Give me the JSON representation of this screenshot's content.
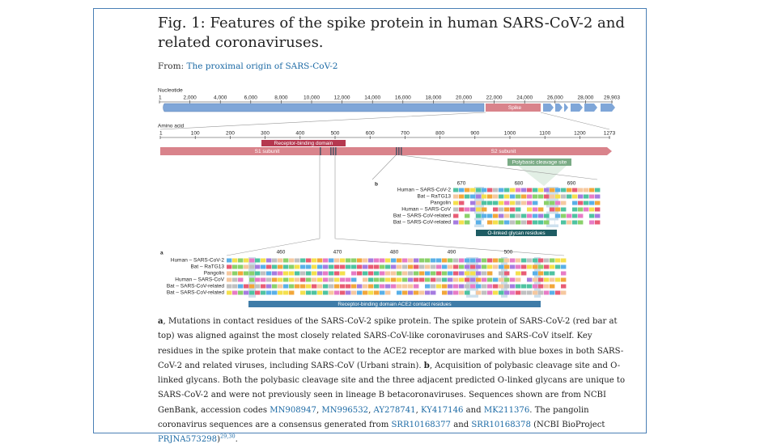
{
  "header": {
    "title": "Fig. 1: Features of the spike protein in human SARS-CoV-2 and related coronaviruses.",
    "from_label": "From:",
    "from_link": "The proximal origin of SARS-CoV-2"
  },
  "figure": {
    "nucleotide": {
      "label": "Nucleotide",
      "ticks": [
        "1",
        "2,000",
        "4,000",
        "6,000",
        "8,000",
        "10,000",
        "12,000",
        "14,000",
        "16,000",
        "18,000",
        "20,000",
        "22,000",
        "24,000",
        "26,000",
        "28,000",
        "29,903"
      ],
      "spike_label": "Spike"
    },
    "amino_acid": {
      "label": "Amino acid",
      "ticks": [
        "1",
        "100",
        "200",
        "300",
        "400",
        "500",
        "600",
        "700",
        "800",
        "900",
        "1000",
        "1100",
        "1200",
        "1273"
      ],
      "rbd_label": "Receptor-binding domain",
      "s1_label": "S1 subunit",
      "s2_label": "S2 subunit",
      "polybasic_label": "Polybasic cleavage site"
    },
    "panel_b": {
      "letter": "b",
      "positions": [
        "670",
        "680",
        "690"
      ],
      "rows": [
        "Human – SARS-CoV-2",
        "Bat – RaTG13",
        "Pangolin",
        "Human – SARS-CoV",
        "Bat – SARS-CoV-related",
        "Bat – SARS-CoV-related"
      ],
      "footer": "O-linked glycan residues"
    },
    "panel_a": {
      "letter": "a",
      "positions": [
        "460",
        "470",
        "480",
        "490",
        "500"
      ],
      "rows": [
        "Human – SARS-CoV-2",
        "Bat – RaTG13",
        "Pangolin",
        "Human – SARS-CoV",
        "Bat – SARS-CoV-related",
        "Bat – SARS-CoV-related"
      ],
      "footer": "Receptor-binding domain ACE2 contact residues"
    }
  },
  "caption": {
    "parts": [
      "a",
      ", Mutations in contact residues of the SARS-CoV-2 spike protein. The spike protein of SARS-CoV-2 (red bar at top) was aligned against the most closely related SARS-CoV-like coronaviruses and SARS-CoV itself. Key residues in the spike protein that make contact to the ACE2 receptor are marked with blue boxes in both SARS-CoV-2 and related viruses, including SARS-CoV (Urbani strain). ",
      "b",
      ", Acquisition of polybasic cleavage site and O-linked glycans. Both the polybasic cleavage site and the three adjacent predicted O-linked glycans are unique to SARS-CoV-2 and were not previously seen in lineage B betacoronaviruses. Sequences shown are from NCBI GenBank, accession codes ",
      "MN908947",
      ", ",
      "MN996532",
      ", ",
      "AY278741",
      ", ",
      "KY417146",
      " and ",
      "MK211376",
      ". The pangolin coronavirus sequences are a consensus generated from ",
      "SRR10168377",
      " and ",
      "SRR10168378",
      " (NCBI BioProject ",
      "PRJNA573298",
      ")",
      "29,30",
      "."
    ]
  }
}
